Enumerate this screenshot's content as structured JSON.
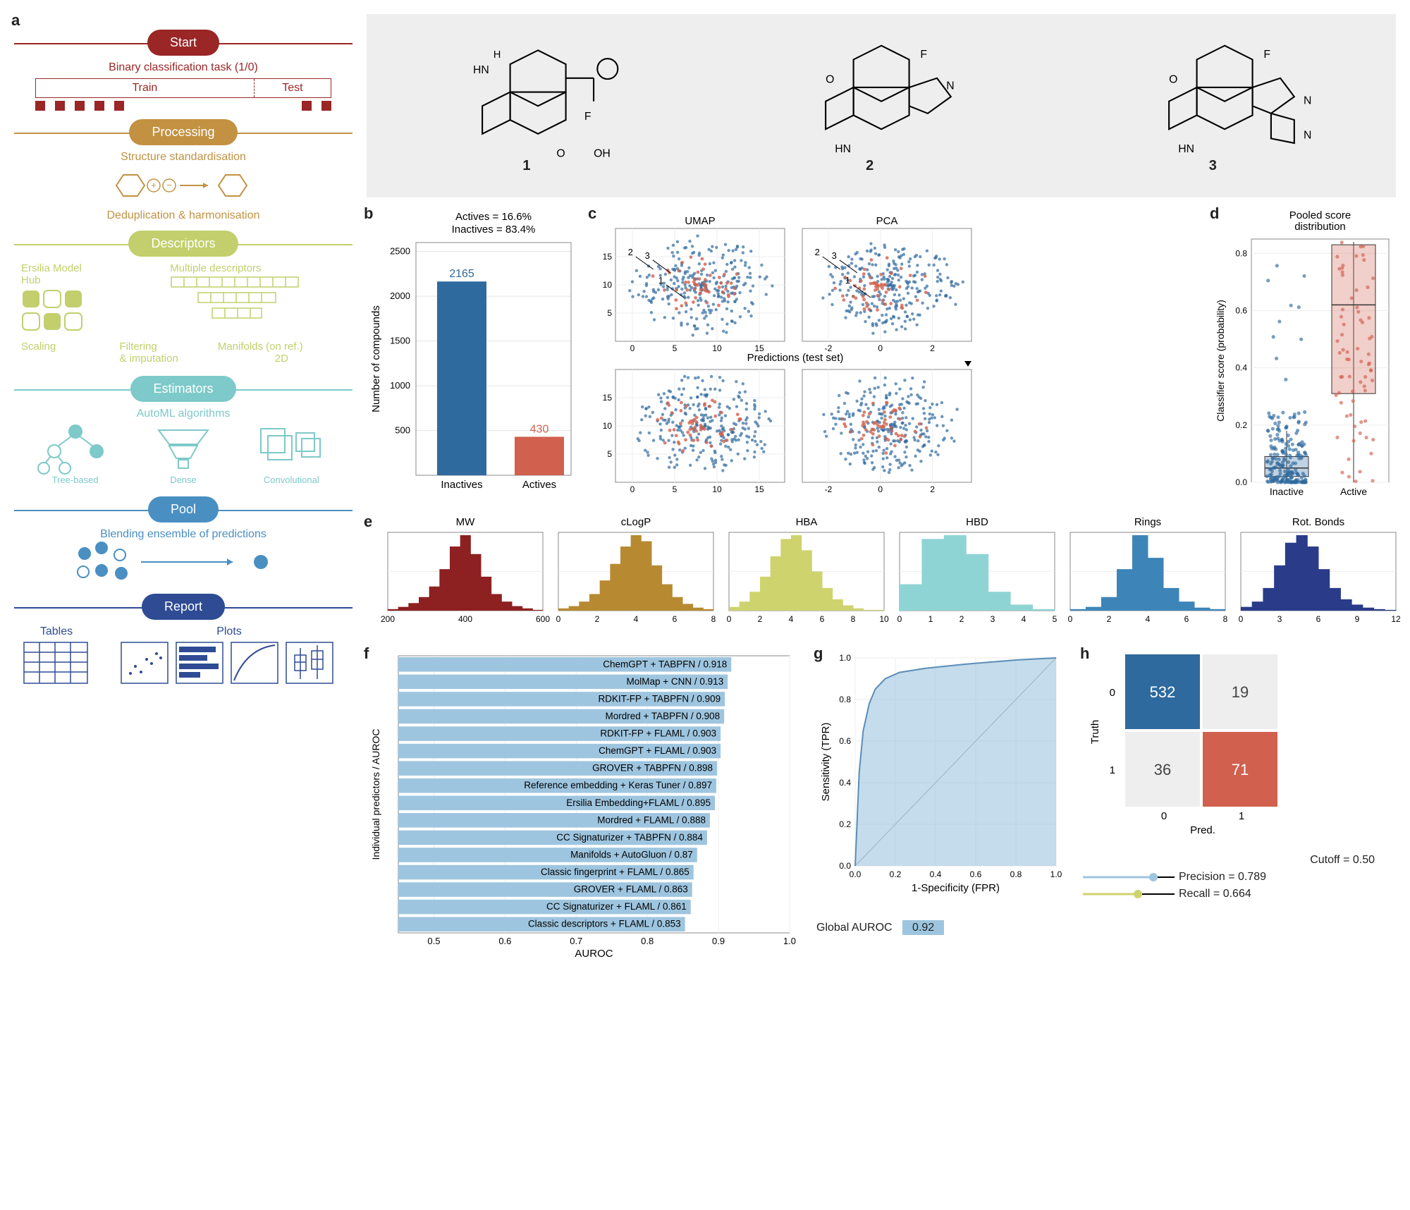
{
  "panel_a": {
    "label": "a",
    "stages": [
      {
        "name": "Start",
        "color": "#9a2626",
        "line": "#9a2626"
      },
      {
        "name": "Processing",
        "color": "#c29242",
        "line": "#c29242"
      },
      {
        "name": "Descriptors",
        "color": "#c2cf6c",
        "line": "#c2cf6c"
      },
      {
        "name": "Estimators",
        "color": "#7ec9c9",
        "line": "#7ec9c9"
      },
      {
        "name": "Pool",
        "color": "#4a8fc2",
        "line": "#4a8fc2"
      },
      {
        "name": "Report",
        "color": "#2e4b94",
        "line": "#2e4b94"
      }
    ],
    "start": {
      "task": "Binary classification task (1/0)",
      "train": "Train",
      "test": "Test"
    },
    "processing": {
      "l1": "Structure standardisation",
      "l2": "Deduplication & harmonisation"
    },
    "descriptors": {
      "hub": "Ersilia Model\nHub",
      "multi": "Multiple descriptors",
      "scaling": "Scaling",
      "filter": "Filtering\n& imputation",
      "manifolds": "Manifolds (on ref.)",
      "twoD": "2D"
    },
    "estimators": {
      "title": "AutoML algorithms",
      "tree": "Tree-based",
      "dense": "Dense",
      "conv": "Convolutional"
    },
    "pool": {
      "title": "Blending ensemble of predictions"
    },
    "report": {
      "tables": "Tables",
      "plots": "Plots"
    }
  },
  "molecules": {
    "labels": [
      "1",
      "2",
      "3"
    ]
  },
  "panel_b": {
    "label": "b",
    "title_lines": [
      "Actives = 16.6%",
      "Inactives = 83.4%"
    ],
    "ylabel": "Number of compounds",
    "categories": [
      "Inactives",
      "Actives"
    ],
    "values": [
      2165,
      430
    ],
    "value_labels": [
      "2165",
      "430"
    ],
    "bar_colors": [
      "#2f6a9e",
      "#d1604e"
    ],
    "ylim": [
      0,
      2600
    ],
    "yticks": [
      500,
      1000,
      1500,
      2000,
      2500
    ]
  },
  "panel_c": {
    "label": "c",
    "umap_title": "UMAP",
    "pca_title": "PCA",
    "preds_title": "Predictions (test set)",
    "color_inactive": "#2f6a9e",
    "color_active": "#d1604e",
    "umap_xticks": [
      0,
      5,
      10,
      15
    ],
    "umap_yticks": [
      5,
      10,
      15
    ],
    "pca_xticks": [
      -2,
      0,
      2
    ],
    "pca_yticks": [],
    "annot": [
      "1",
      "2",
      "3"
    ]
  },
  "panel_d": {
    "label": "d",
    "title": "Pooled score\ndistribution",
    "ylabel": "Classifier score (probability)",
    "categories": [
      "Inactive",
      "Active"
    ],
    "colors": [
      "#2f6a9e",
      "#d1604e"
    ],
    "ylim": [
      0,
      0.85
    ],
    "yticks": [
      0.0,
      0.2,
      0.4,
      0.6,
      0.8
    ],
    "box_inactive": {
      "q1": 0.02,
      "med": 0.05,
      "q3": 0.09,
      "wlo": 0.0,
      "whi": 0.18
    },
    "box_active": {
      "q1": 0.31,
      "med": 0.62,
      "q3": 0.83,
      "wlo": 0.0,
      "whi": 0.84
    }
  },
  "panel_e": {
    "label": "e",
    "hists": [
      {
        "title": "MW",
        "color": "#8d2020",
        "xticks": [
          200,
          400,
          600
        ],
        "bins": [
          0.02,
          0.05,
          0.1,
          0.18,
          0.32,
          0.55,
          0.85,
          1.0,
          0.75,
          0.45,
          0.22,
          0.12,
          0.06,
          0.03,
          0.01
        ]
      },
      {
        "title": "cLogP",
        "color": "#b78a32",
        "xticks": [
          0,
          2,
          4,
          6,
          8
        ],
        "bins": [
          0.03,
          0.06,
          0.12,
          0.22,
          0.4,
          0.62,
          0.85,
          1.0,
          0.92,
          0.6,
          0.35,
          0.18,
          0.09,
          0.04,
          0.02
        ]
      },
      {
        "title": "HBA",
        "color": "#cfd36e",
        "xticks": [
          0,
          2,
          4,
          6,
          8,
          10
        ],
        "bins": [
          0.05,
          0.12,
          0.25,
          0.45,
          0.72,
          0.95,
          1.0,
          0.8,
          0.52,
          0.3,
          0.15,
          0.07,
          0.03,
          0.01,
          0.01
        ]
      },
      {
        "title": "HBD",
        "color": "#8fd4d4",
        "xticks": [
          0,
          1,
          2,
          3,
          4,
          5
        ],
        "bins": [
          0.35,
          0.95,
          1.0,
          0.75,
          0.25,
          0.08,
          0.02
        ]
      },
      {
        "title": "Rings",
        "color": "#3d85b8",
        "xticks": [
          0,
          2,
          4,
          6,
          8
        ],
        "bins": [
          0.02,
          0.05,
          0.18,
          0.55,
          1.0,
          0.7,
          0.3,
          0.12,
          0.04,
          0.02
        ]
      },
      {
        "title": "Rot. Bonds",
        "color": "#2a3b8a",
        "xticks": [
          0,
          3,
          6,
          9,
          12
        ],
        "bins": [
          0.05,
          0.12,
          0.3,
          0.6,
          0.9,
          1.0,
          0.85,
          0.55,
          0.3,
          0.15,
          0.08,
          0.04,
          0.02,
          0.01
        ]
      }
    ]
  },
  "panel_f": {
    "label": "f",
    "ylabel": "Individual predictors / AUROC",
    "xlabel": "AUROC",
    "xticks": [
      0.5,
      0.6,
      0.7,
      0.8,
      0.9,
      1.0
    ],
    "bar_color": "#9ec5df",
    "rows": [
      {
        "label": "ChemGPT + TABPFN / 0.918",
        "v": 0.918
      },
      {
        "label": "MolMap + CNN / 0.913",
        "v": 0.913
      },
      {
        "label": "RDKIT-FP + TABPFN / 0.909",
        "v": 0.909
      },
      {
        "label": "Mordred + TABPFN / 0.908",
        "v": 0.908
      },
      {
        "label": "RDKIT-FP + FLAML / 0.903",
        "v": 0.903
      },
      {
        "label": "ChemGPT + FLAML / 0.903",
        "v": 0.903
      },
      {
        "label": "GROVER + TABPFN / 0.898",
        "v": 0.898
      },
      {
        "label": "Reference embedding + Keras Tuner / 0.897",
        "v": 0.897
      },
      {
        "label": "Ersilia Embedding+FLAML / 0.895",
        "v": 0.895
      },
      {
        "label": "Mordred + FLAML / 0.888",
        "v": 0.888
      },
      {
        "label": "CC Signaturizer + TABPFN / 0.884",
        "v": 0.884
      },
      {
        "label": "Manifolds + AutoGluon / 0.87",
        "v": 0.87
      },
      {
        "label": "Classic fingerprint + FLAML / 0.865",
        "v": 0.865
      },
      {
        "label": "GROVER + FLAML / 0.863",
        "v": 0.863
      },
      {
        "label": "CC Signaturizer + FLAML / 0.861",
        "v": 0.861
      },
      {
        "label": "Classic descriptors + FLAML / 0.853",
        "v": 0.853
      }
    ]
  },
  "panel_g": {
    "label": "g",
    "ylabel": "Sensitivity (TPR)",
    "xlabel": "1-Specificity (FPR)",
    "xticks": [
      0.0,
      0.2,
      0.4,
      0.6,
      0.8,
      1.0
    ],
    "yticks": [
      0.0,
      0.2,
      0.4,
      0.6,
      0.8,
      1.0
    ],
    "roc_color": "#9ec5df",
    "roc": [
      [
        0,
        0
      ],
      [
        0.02,
        0.45
      ],
      [
        0.04,
        0.65
      ],
      [
        0.07,
        0.78
      ],
      [
        0.1,
        0.85
      ],
      [
        0.15,
        0.9
      ],
      [
        0.22,
        0.93
      ],
      [
        0.35,
        0.95
      ],
      [
        0.55,
        0.97
      ],
      [
        0.8,
        0.99
      ],
      [
        1.0,
        1.0
      ]
    ],
    "global_label": "Global AUROC",
    "global_value": "0.92"
  },
  "panel_h": {
    "label": "h",
    "rowlab": "Truth",
    "collab": "Pred.",
    "cats": [
      "0",
      "1"
    ],
    "cells": [
      {
        "r": 0,
        "c": 0,
        "v": "532",
        "bg": "#2f6a9e",
        "fg": "#fff"
      },
      {
        "r": 0,
        "c": 1,
        "v": "19",
        "bg": "#eee",
        "fg": "#444"
      },
      {
        "r": 1,
        "c": 0,
        "v": "36",
        "bg": "#eee",
        "fg": "#444"
      },
      {
        "r": 1,
        "c": 1,
        "v": "71",
        "bg": "#d1604e",
        "fg": "#fff"
      }
    ],
    "cutoff": "Cutoff = 0.50",
    "precision": "Precision = 0.789",
    "recall": "Recall = 0.664",
    "precision_color": "#9ec5df",
    "recall_color": "#cfd36e"
  }
}
